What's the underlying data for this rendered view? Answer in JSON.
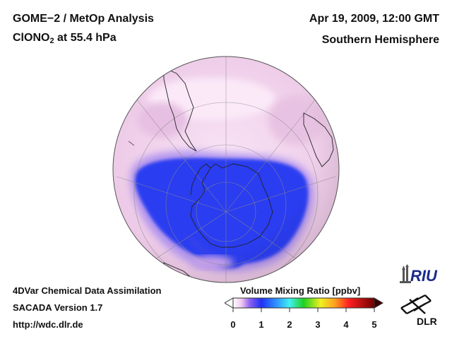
{
  "header": {
    "title_line1": "GOME−2 / MetOp Analysis",
    "title_line2_main": "ClONO",
    "title_line2_sub": "2",
    "title_line2_rest": " at 55.4 hPa",
    "date": "Apr 19, 2009, 12:00 GMT",
    "hemisphere": "Southern Hemisphere"
  },
  "footer": {
    "line1": "4DVar Chemical Data Assimilation",
    "line2": "SACADA Version 1.7",
    "line3": "http://wdc.dlr.de"
  },
  "colorbar": {
    "title": "Volume Mixing Ratio [ppbv]",
    "ticks": [
      "0",
      "1",
      "2",
      "3",
      "4",
      "5"
    ],
    "range": [
      0,
      5
    ]
  },
  "logos": {
    "riu": "RIU",
    "dlr": "DLR"
  },
  "colors": {
    "low_blue": "#2b3cf0",
    "background_pink": "#f3d6ee",
    "land_outline": "#222222"
  }
}
